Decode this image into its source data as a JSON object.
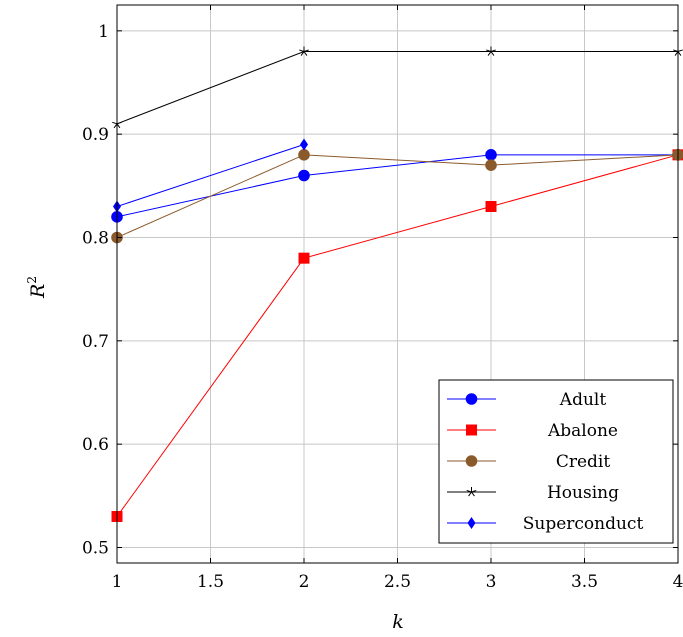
{
  "chart_data": {
    "type": "line",
    "title": "",
    "xlabel": "k",
    "ylabel": "R",
    "ylabel_superscript": "2",
    "xlim": [
      1,
      4
    ],
    "ylim": [
      0.485,
      1.025
    ],
    "xticks": [
      1,
      1.5,
      2,
      2.5,
      3,
      3.5,
      4
    ],
    "xtick_labels": [
      "1",
      "1.5",
      "2",
      "2.5",
      "3",
      "3.5",
      "4"
    ],
    "yticks": [
      0.5,
      0.6,
      0.7,
      0.8,
      0.9,
      1.0
    ],
    "ytick_labels": [
      "0.5",
      "0.6",
      "0.7",
      "0.8",
      "0.9",
      "1"
    ],
    "grid": true,
    "legend_position": "bottom-right",
    "series": [
      {
        "name": "Adult",
        "color": "#0000ff",
        "marker": "circle",
        "x": [
          1,
          2,
          3,
          4
        ],
        "y": [
          0.82,
          0.86,
          0.88,
          0.88
        ]
      },
      {
        "name": "Abalone",
        "color": "#ff0000",
        "marker": "square",
        "x": [
          1,
          2,
          3,
          4
        ],
        "y": [
          0.53,
          0.78,
          0.83,
          0.88
        ]
      },
      {
        "name": "Credit",
        "color": "#8b5a2b",
        "marker": "circle",
        "x": [
          1,
          2,
          3,
          4
        ],
        "y": [
          0.8,
          0.88,
          0.87,
          0.88
        ]
      },
      {
        "name": "Housing",
        "color": "#000000",
        "marker": "star",
        "x": [
          1,
          2,
          3,
          4
        ],
        "y": [
          0.91,
          0.98,
          0.98,
          0.98
        ]
      },
      {
        "name": "Superconduct",
        "color": "#0000ff",
        "marker": "diamond",
        "x": [
          1,
          2
        ],
        "y": [
          0.83,
          0.89
        ]
      }
    ]
  }
}
